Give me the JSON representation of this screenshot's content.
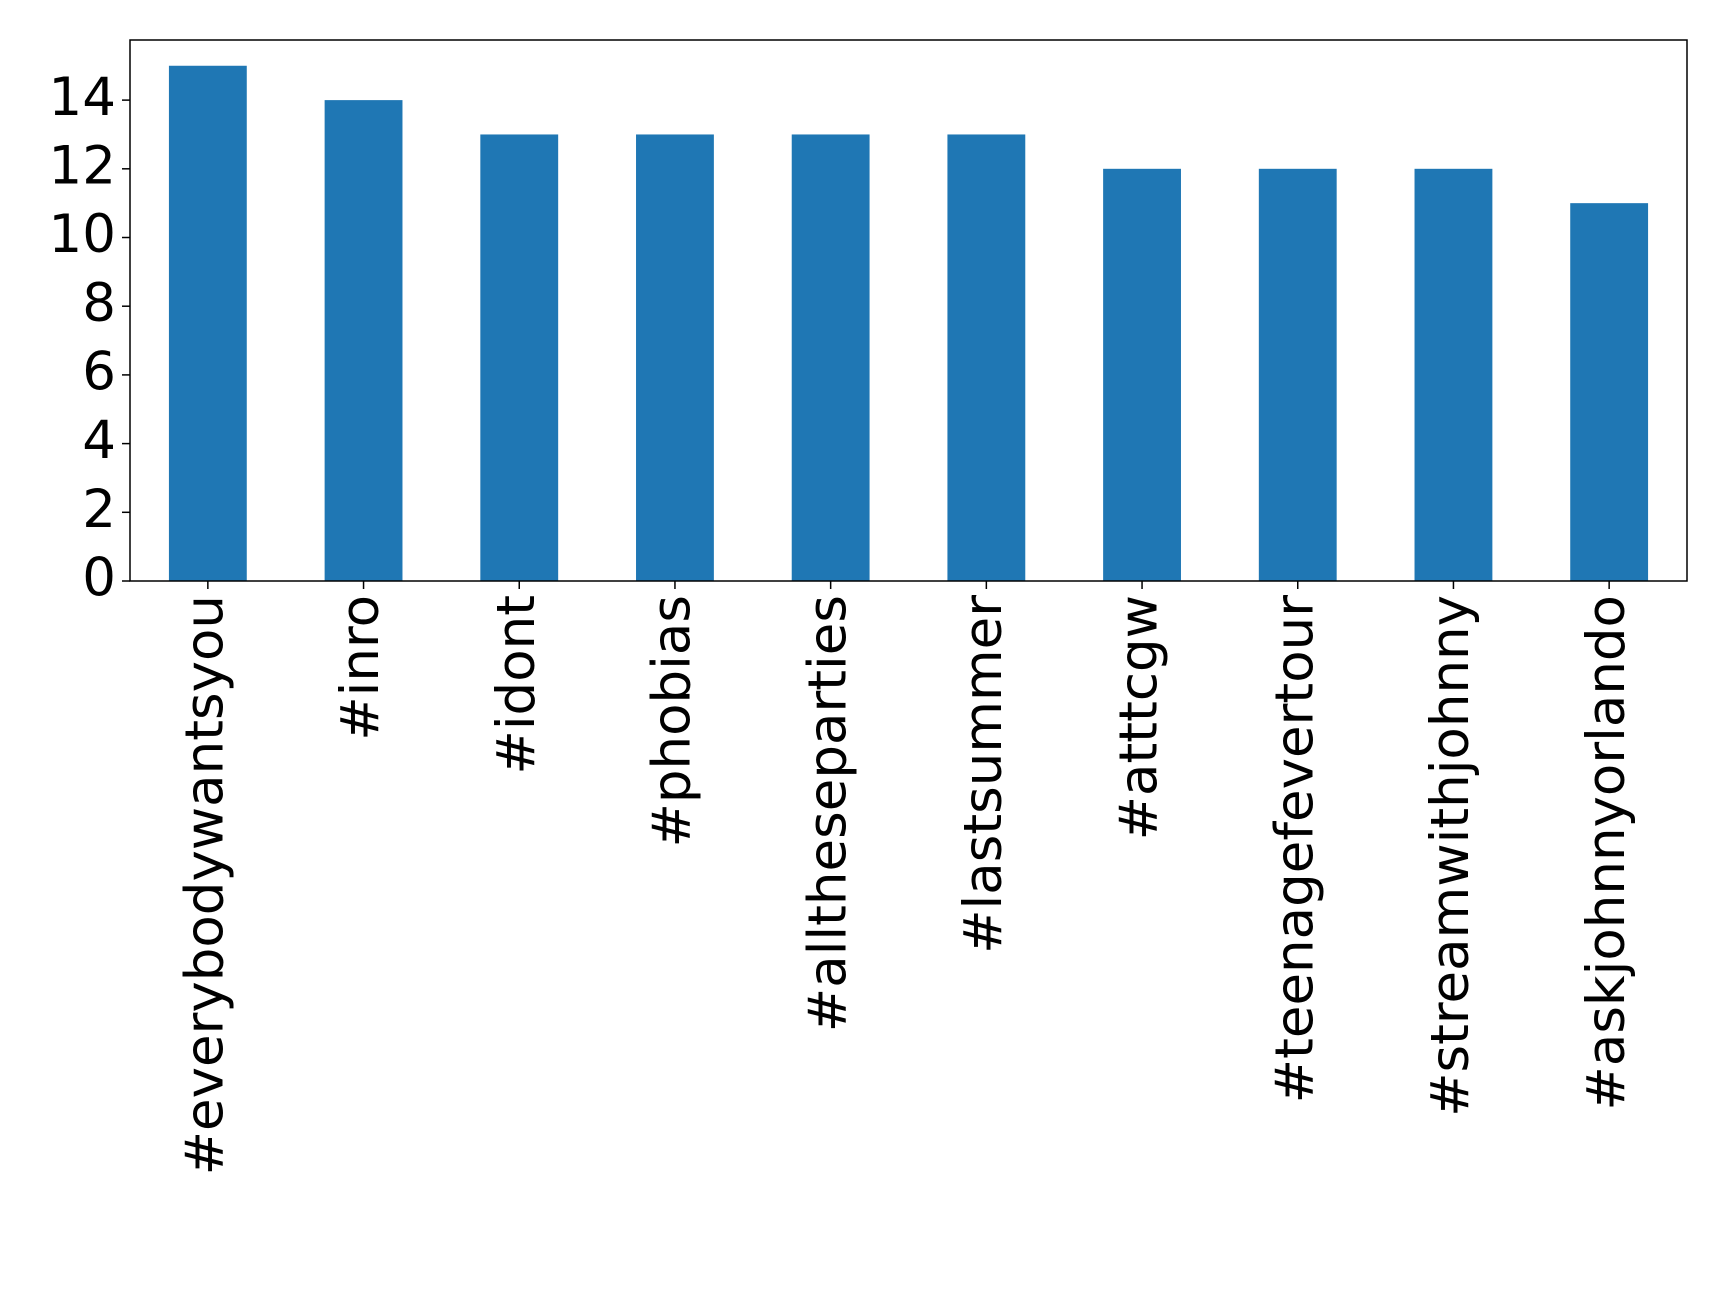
{
  "chart_data": {
    "type": "bar",
    "categories": [
      "#everybodywantsyou",
      "#inro",
      "#idont",
      "#phobias",
      "#alltheseparties",
      "#lastsummer",
      "#atttcgw",
      "#teenagefevertour",
      "#streamwithjohnny",
      "#askjohnnyorlando"
    ],
    "values": [
      15,
      14,
      13,
      13,
      13,
      13,
      12,
      12,
      12,
      11
    ],
    "color": "#1f77b4",
    "ylim": [
      0,
      15.75
    ],
    "yticks": [
      0,
      2,
      4,
      6,
      8,
      10,
      12,
      14
    ],
    "grid": false
  }
}
